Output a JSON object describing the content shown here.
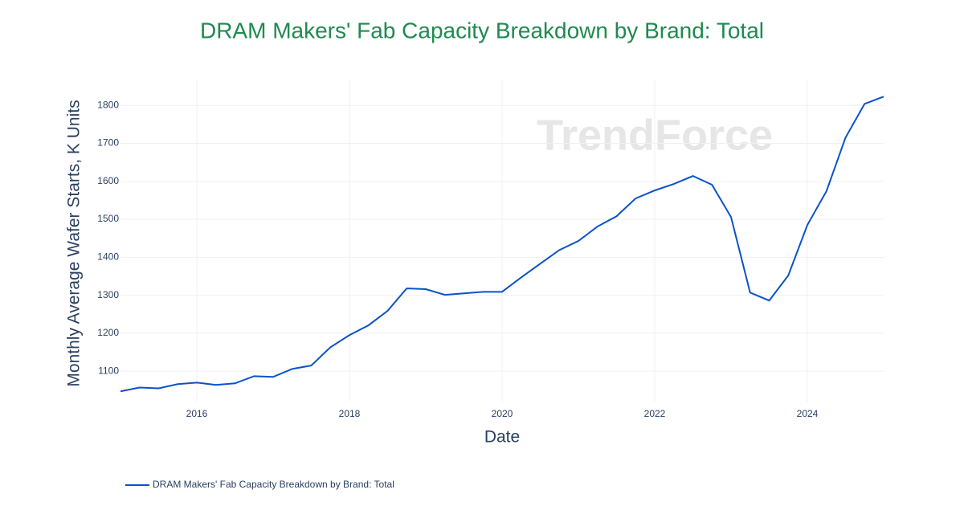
{
  "chart_data": {
    "type": "line",
    "title": "DRAM Makers' Fab Capacity Breakdown by Brand: Total",
    "x_label": "Date",
    "y_label": "Monthly Average Wafer Starts, K Units",
    "watermark": "TrendForce",
    "x": [
      2015,
      2015.25,
      2015.5,
      2015.75,
      2016,
      2016.25,
      2016.5,
      2016.75,
      2017,
      2017.25,
      2017.5,
      2017.75,
      2018,
      2018.25,
      2018.5,
      2018.75,
      2019,
      2019.25,
      2019.5,
      2019.75,
      2020,
      2020.25,
      2020.5,
      2020.75,
      2021,
      2021.25,
      2021.5,
      2021.75,
      2022,
      2022.25,
      2022.5,
      2022.75,
      2023,
      2023.25,
      2023.5,
      2023.75,
      2024,
      2024.25,
      2024.5,
      2024.75,
      2025
    ],
    "series": [
      {
        "name": "DRAM Makers' Fab Capacity Breakdown by Brand: Total",
        "color": "#0b52c9",
        "values": [
          1047,
          1057,
          1055,
          1066,
          1070,
          1064,
          1068,
          1087,
          1085,
          1106,
          1115,
          1163,
          1195,
          1221,
          1259,
          1318,
          1316,
          1301,
          1305,
          1309,
          1309,
          1347,
          1383,
          1419,
          1443,
          1481,
          1508,
          1555,
          1576,
          1593,
          1614,
          1591,
          1506,
          1307,
          1286,
          1352,
          1485,
          1574,
          1715,
          1804,
          1823
        ]
      }
    ],
    "xlim": [
      2015,
      2025
    ],
    "xticks": [
      2016,
      2018,
      2020,
      2022,
      2024
    ],
    "ylim": [
      1020,
      1866
    ],
    "yticks": [
      1100,
      1200,
      1300,
      1400,
      1500,
      1600,
      1700,
      1800
    ],
    "grid": true,
    "legend": "bottom-left"
  }
}
